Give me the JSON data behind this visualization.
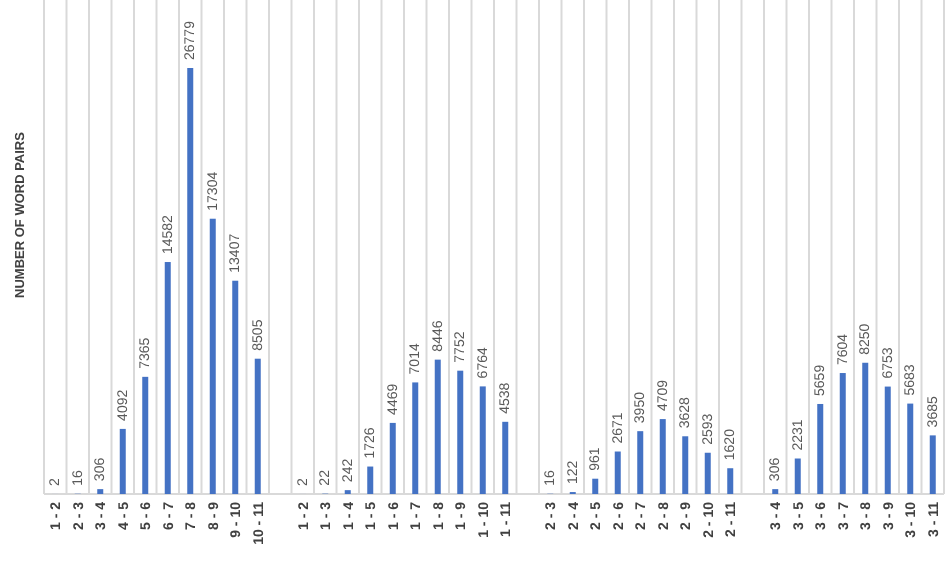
{
  "chart_data": {
    "type": "bar",
    "ylabel": "NUMBER OF WORD PAIRS",
    "categories": [
      "1 - 2",
      "2 - 3",
      "3 - 4",
      "4 - 5",
      "5 - 6",
      "6 - 7",
      "7 - 8",
      "8 - 9",
      "9 - 10",
      "10 - 11",
      null,
      "1 - 2",
      "1 - 3",
      "1 - 4",
      "1 - 5",
      "1 - 6",
      "1 - 7",
      "1 - 8",
      "1 - 9",
      "1 - 10",
      "1 - 11",
      null,
      "2 - 3",
      "2 - 4",
      "2 - 5",
      "2 - 6",
      "2 - 7",
      "2 - 8",
      "2 - 9",
      "2 - 10",
      "2 - 11",
      null,
      "3 - 4",
      "3 - 5",
      "3 - 6",
      "3 - 7",
      "3 - 8",
      "3 - 9",
      "3 - 10",
      "3 - 11"
    ],
    "values": [
      2,
      16,
      306,
      4092,
      7365,
      14582,
      26779,
      17304,
      13407,
      8505,
      null,
      2,
      22,
      242,
      1726,
      4469,
      7014,
      8446,
      7752,
      6764,
      4538,
      null,
      16,
      122,
      961,
      2671,
      3950,
      4709,
      3628,
      2593,
      1620,
      null,
      306,
      2231,
      5659,
      7604,
      8250,
      6753,
      5683,
      3685
    ],
    "color": "#4472c4",
    "data_labels": true,
    "grid": "x"
  }
}
